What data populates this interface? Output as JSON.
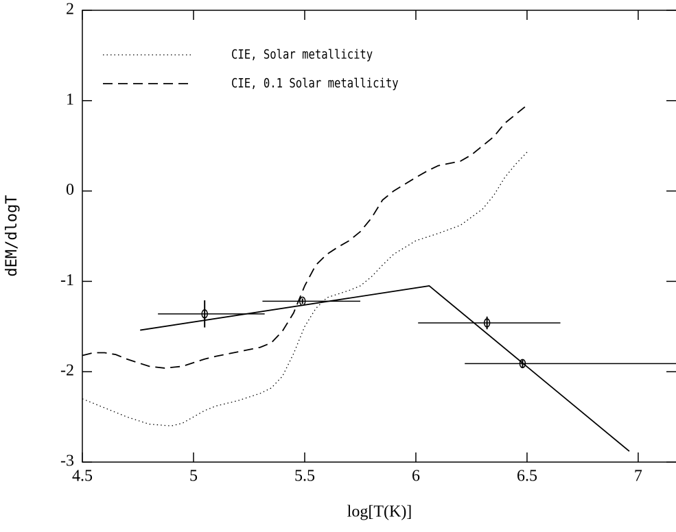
{
  "chart_data": {
    "type": "line",
    "xlabel": "log[T(K)]",
    "ylabel": "dEM/dlogT",
    "xlim": [
      4.5,
      7.17
    ],
    "ylim": [
      -3,
      2
    ],
    "xticks": [
      4.5,
      5,
      5.5,
      6,
      6.5,
      7
    ],
    "yticks": [
      -3,
      -2,
      -1,
      0,
      1,
      2
    ],
    "legend": "upper left",
    "series": [
      {
        "name": "CIE, Solar metallicity",
        "color": "#000000",
        "style": "dotted",
        "x": [
          4.5,
          4.6,
          4.7,
          4.8,
          4.9,
          4.95,
          5.0,
          5.05,
          5.1,
          5.2,
          5.3,
          5.35,
          5.4,
          5.45,
          5.5,
          5.55,
          5.6,
          5.7,
          5.75,
          5.8,
          5.85,
          5.9,
          6.0,
          6.1,
          6.2,
          6.3,
          6.35,
          6.4,
          6.45,
          6.5
        ],
        "values": [
          -2.3,
          -2.4,
          -2.5,
          -2.58,
          -2.6,
          -2.57,
          -2.5,
          -2.43,
          -2.38,
          -2.32,
          -2.24,
          -2.18,
          -2.05,
          -1.8,
          -1.5,
          -1.3,
          -1.18,
          -1.1,
          -1.05,
          -0.95,
          -0.82,
          -0.7,
          -0.55,
          -0.47,
          -0.38,
          -0.2,
          -0.05,
          0.15,
          0.3,
          0.43
        ]
      },
      {
        "name": "CIE, 0.1 Solar metallicity",
        "color": "#000000",
        "style": "dashed",
        "x": [
          4.5,
          4.55,
          4.6,
          4.65,
          4.7,
          4.8,
          4.87,
          4.95,
          5.0,
          5.05,
          5.1,
          5.2,
          5.3,
          5.35,
          5.4,
          5.45,
          5.5,
          5.55,
          5.6,
          5.65,
          5.7,
          5.75,
          5.8,
          5.85,
          5.9,
          6.0,
          6.05,
          6.1,
          6.2,
          6.25,
          6.3,
          6.35,
          6.4,
          6.45,
          6.5
        ],
        "values": [
          -1.82,
          -1.79,
          -1.79,
          -1.81,
          -1.86,
          -1.94,
          -1.96,
          -1.94,
          -1.9,
          -1.86,
          -1.83,
          -1.78,
          -1.73,
          -1.68,
          -1.55,
          -1.35,
          -1.05,
          -0.82,
          -0.7,
          -0.62,
          -0.55,
          -0.45,
          -0.3,
          -0.1,
          0.0,
          0.15,
          0.22,
          0.28,
          0.33,
          0.4,
          0.5,
          0.6,
          0.75,
          0.85,
          0.95
        ]
      },
      {
        "color": "#000000",
        "style": "solid",
        "x": [
          4.76,
          6.06,
          6.96
        ],
        "values": [
          -1.54,
          -1.05,
          -2.88
        ]
      }
    ],
    "errorbars": {
      "color": "#000000",
      "x": [
        5.05,
        5.49,
        6.32,
        6.48
      ],
      "values": [
        -1.36,
        -1.22,
        -1.46,
        -1.91
      ],
      "x_low": [
        4.84,
        5.31,
        6.01,
        6.22
      ],
      "x_high": [
        5.32,
        5.75,
        6.65,
        7.17
      ],
      "yerr": [
        0.15,
        0.03,
        0.07,
        0.04
      ]
    }
  }
}
